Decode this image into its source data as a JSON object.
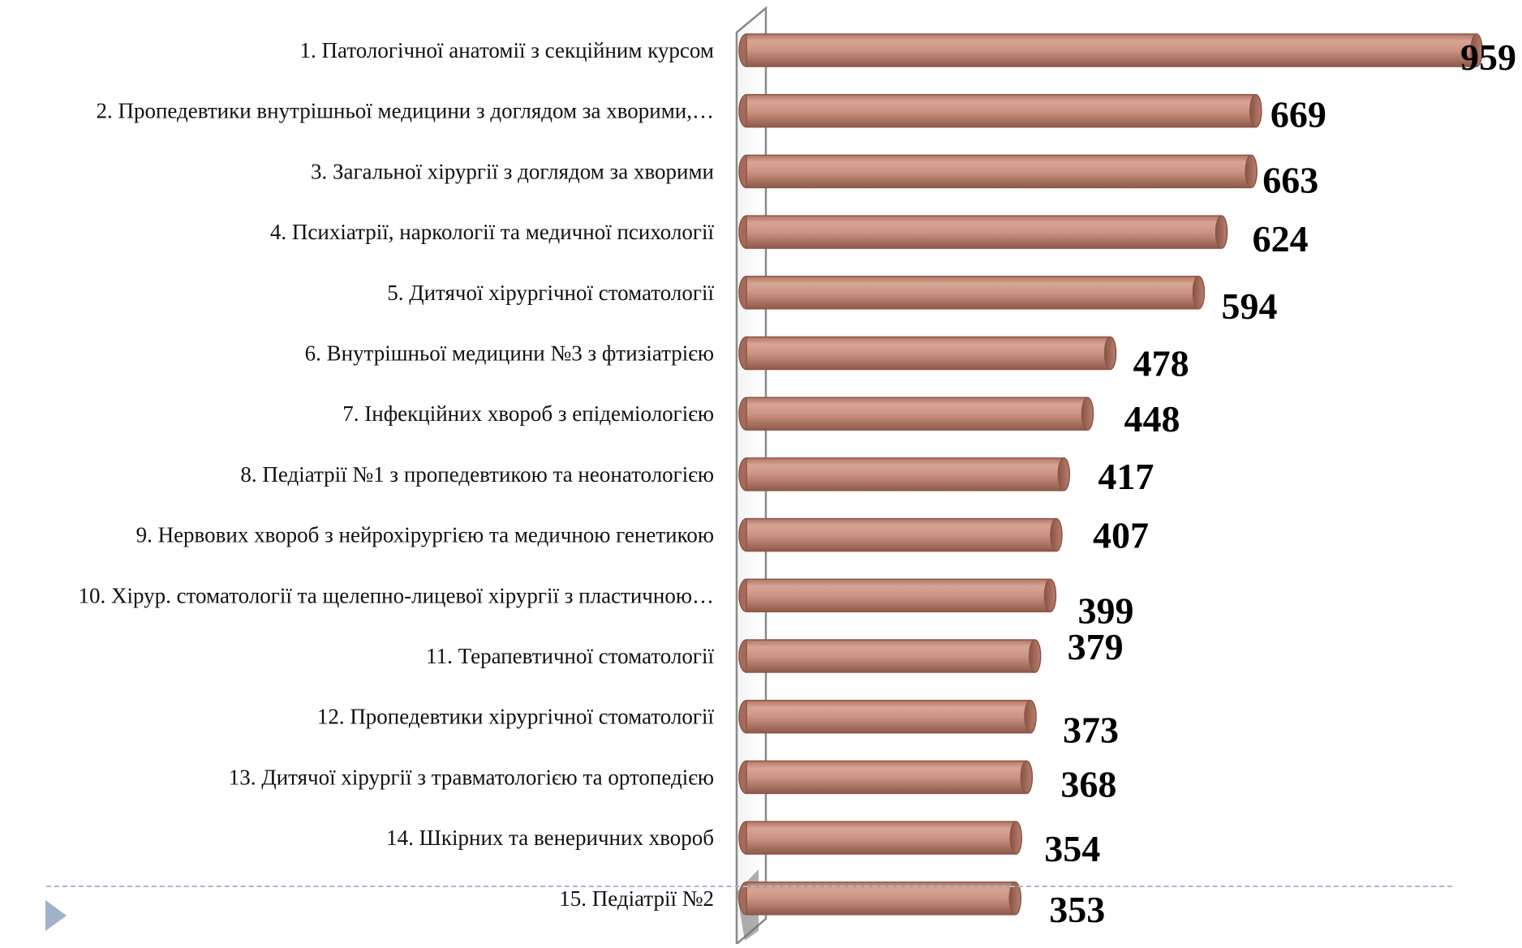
{
  "chart_data": {
    "type": "bar",
    "orientation": "horizontal",
    "categories": [
      "1.  Патологічної анатомії з секційним курсом",
      "2. Пропедевтики внутрішньої медицини з доглядом за хворими,…",
      "3.  Загальної хірургії з доглядом за хворими",
      "4.  Психіатрії, наркології та медичної психології",
      "5. Дитячої хірургічної стоматології",
      "6. Внутрішньої медицини №3 з фтизіатрією",
      "7.  Інфекційних хвороб з епідеміологією",
      "8. Педіатрії №1 з пропедевтикою та неонатологією",
      "9.  Нервових хвороб з нейрохірургією та медичною генетикою",
      "10.  Хірур. стоматології та щелепно-лицевої хірургії з пластичною…",
      "11.  Терапевтичної стоматології",
      "12.  Пропедевтики хірургічної стоматології",
      "13.  Дитячої хірургії з травматологією та ортопедією",
      "14. Шкірних та венеричних хвороб",
      "15.  Педіатрії №2"
    ],
    "values": [
      959,
      669,
      663,
      624,
      594,
      478,
      448,
      417,
      407,
      399,
      379,
      373,
      368,
      354,
      353
    ],
    "value_labels": [
      "959",
      "669",
      "663",
      "624",
      "594",
      "478",
      "448",
      "417",
      "407",
      "399",
      "379",
      "373",
      "368",
      "354",
      "353"
    ],
    "xlim": [
      0,
      959
    ],
    "grid": false,
    "legend": "none",
    "bar_color": "#c98f7d",
    "bar_edge_color": "#8e5446",
    "axis_wall_color": "#8a8a8a"
  },
  "decor": {
    "divider_color": "#a8b9d0",
    "arrow_color": "#9fb1cb"
  }
}
